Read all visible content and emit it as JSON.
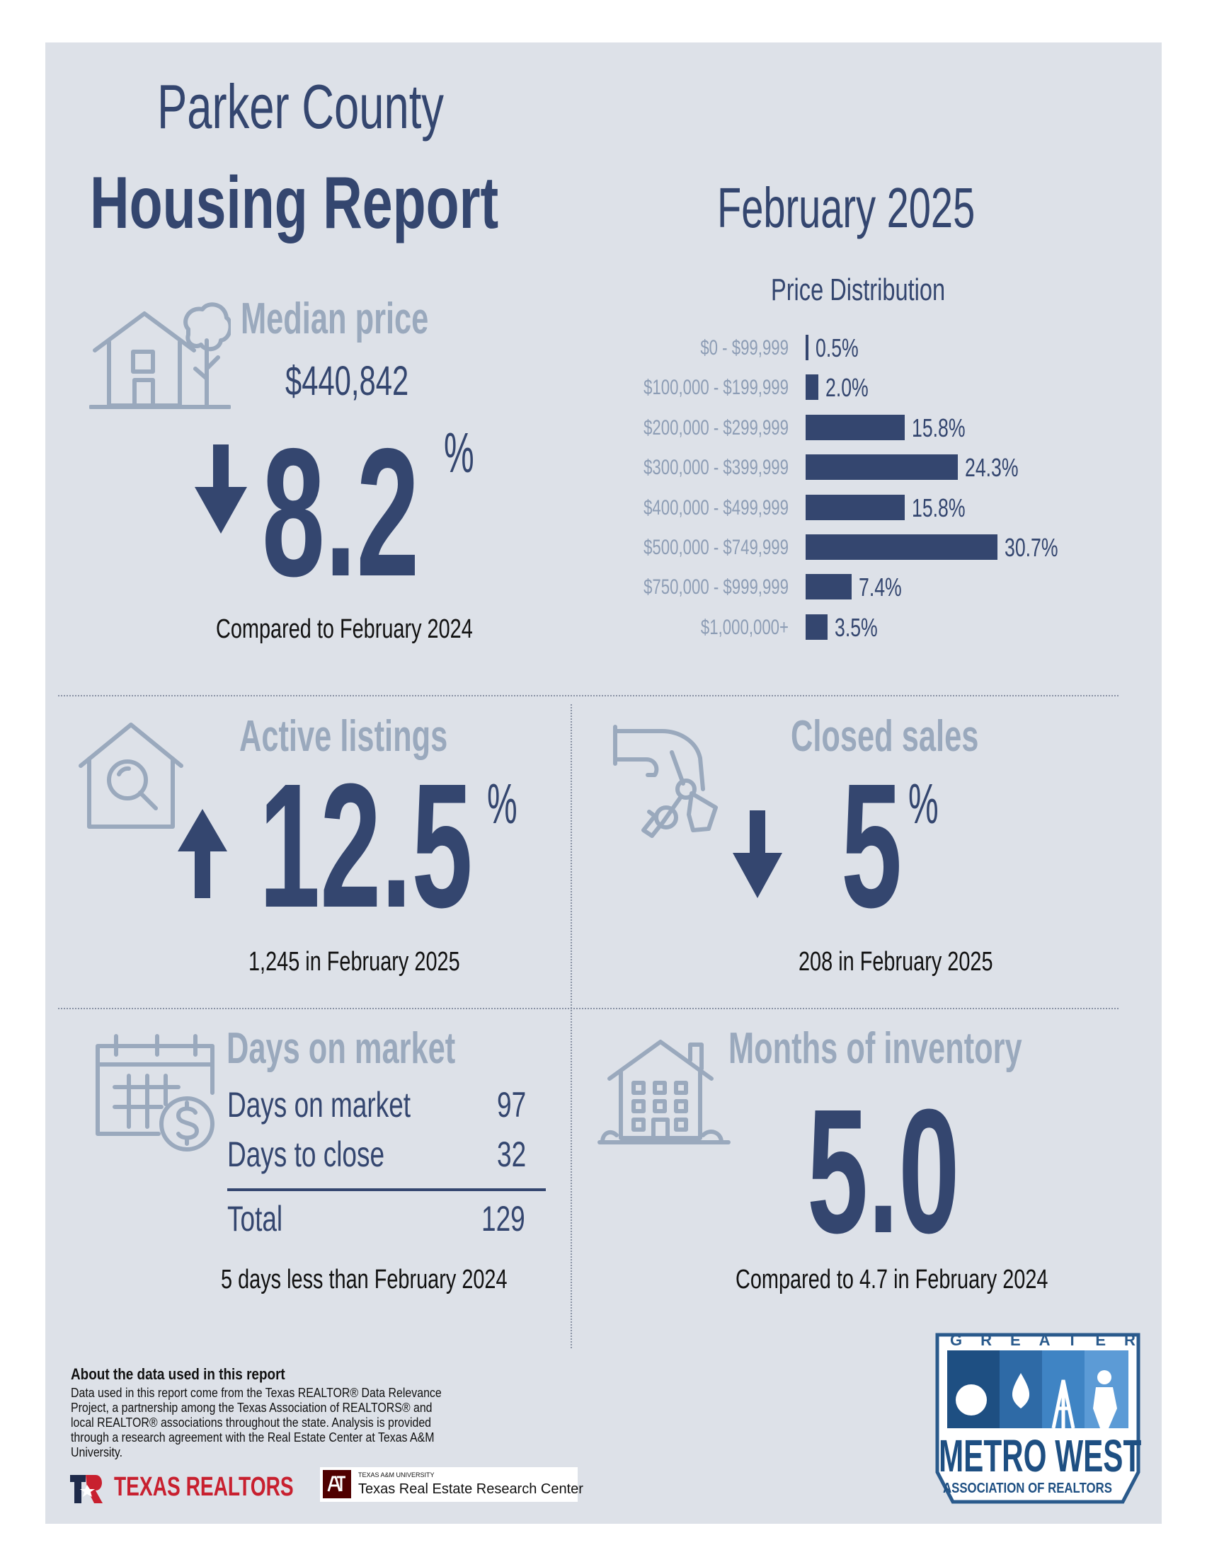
{
  "header": {
    "title_line1": "Parker County",
    "title_line2": "Housing Report",
    "month": "February 2025"
  },
  "median_price": {
    "title": "Median price",
    "value": "$440,842",
    "change": "8.2",
    "change_unit": "%",
    "direction": "down",
    "caption": "Compared to February 2024",
    "icon": "house-tree-icon"
  },
  "price_distribution": {
    "title": "Price Distribution"
  },
  "chart_data": {
    "type": "bar",
    "orientation": "horizontal",
    "title": "Price Distribution",
    "categories": [
      "$0 - $99,999",
      "$100,000 - $199,999",
      "$200,000 - $299,999",
      "$300,000 - $399,999",
      "$400,000 - $499,999",
      "$500,000 - $749,999",
      "$750,000 - $999,999",
      "$1,000,000+"
    ],
    "values": [
      0.5,
      2.0,
      15.8,
      24.3,
      15.8,
      30.7,
      7.4,
      3.5
    ],
    "value_labels": [
      "0.5%",
      "2.0%",
      "15.8%",
      "24.3%",
      "15.8%",
      "30.7%",
      "7.4%",
      "3.5%"
    ],
    "unit": "%",
    "bar_color": "#34466f",
    "grid": false
  },
  "active_listings": {
    "title": "Active listings",
    "change": "12.5",
    "change_unit": "%",
    "direction": "up",
    "caption": "1,245 in February 2025",
    "icon": "house-magnifier-icon"
  },
  "closed_sales": {
    "title": "Closed sales",
    "change": "5",
    "change_unit": "%",
    "direction": "down",
    "caption": "208 in February 2025",
    "icon": "hand-keys-icon"
  },
  "days_on_market": {
    "title": "Days on market",
    "rows": [
      {
        "label": "Days on market",
        "value": "97"
      },
      {
        "label": "Days to close",
        "value": "32"
      }
    ],
    "total": {
      "label": "Total",
      "value": "129"
    },
    "caption": "5 days less than February 2024",
    "icon": "calendar-dollar-icon"
  },
  "months_inventory": {
    "title": "Months of inventory",
    "value": "5.0",
    "caption": "Compared to 4.7 in February 2024",
    "icon": "apartment-building-icon"
  },
  "about": {
    "title": "About the data used in this report",
    "body": "Data used in this report come from the Texas REALTOR® Data Relevance Project, a partnership among the Texas Association of REALTORS® and local REALTOR® associations throughout the state. Analysis is provided through a research agreement with the Real Estate Center at Texas A&M University."
  },
  "logos": {
    "texas_realtors": "TEXAS REALTORS",
    "tamu_small": "TEXAS A&M UNIVERSITY",
    "tamu_center": "Texas Real Estate Research Center",
    "metro_west_top": "GREATER",
    "metro_west_main": "METRO WEST",
    "metro_west_bottom": "ASSOCIATION OF REALTORS"
  },
  "colors": {
    "navy": "#34466f",
    "muted": "#9aa9bd",
    "panel": "#dde1e8",
    "texas_red": "#c8202f"
  }
}
